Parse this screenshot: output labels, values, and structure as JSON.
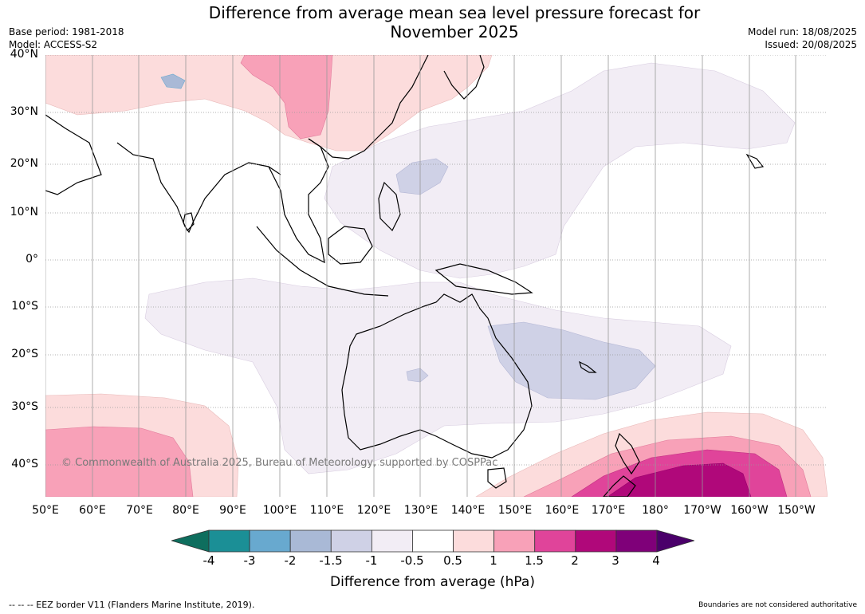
{
  "title_line1": "Difference from average mean sea level pressure forecast for",
  "title_line2": "November 2025",
  "base_period": "Base period: 1981-2018",
  "model": "Model: ACCESS-S2",
  "model_run": "Model run: 18/08/2025",
  "issued": "Issued: 20/08/2025",
  "lat_labels": [
    "40°N",
    "30°N",
    "20°N",
    "10°N",
    "0°",
    "10°S",
    "20°S",
    "30°S",
    "40°S"
  ],
  "lon_labels": [
    "50°E",
    "60°E",
    "70°E",
    "80°E",
    "90°E",
    "100°E",
    "110°E",
    "120°E",
    "130°E",
    "140°E",
    "150°E",
    "160°E",
    "170°E",
    "180°",
    "170°W",
    "160°W",
    "150°W"
  ],
  "copyright": "© Commonwealth of Australia 2025, Bureau of Meteorology, supported by COSPPac",
  "colorbar": {
    "ticks": [
      "-4",
      "-3",
      "-2",
      "-1.5",
      "-1",
      "-0.5",
      "0.5",
      "1",
      "1.5",
      "2",
      "3",
      "4"
    ],
    "colors": [
      "#0e6e5e",
      "#1b8f96",
      "#68a9cf",
      "#a9b9d6",
      "#cfd1e6",
      "#f2edf5",
      "#ffffff",
      "#fcdcdc",
      "#f8a1b8",
      "#e0449a",
      "#b0087a",
      "#7f0079",
      "#4a006a"
    ],
    "label": "Difference from average (hPa)"
  },
  "footer_left": "--  --  -- EEZ border V11 (Flanders Marine Institute, 2019).",
  "footer_right": "Boundaries are not considered authoritative"
}
